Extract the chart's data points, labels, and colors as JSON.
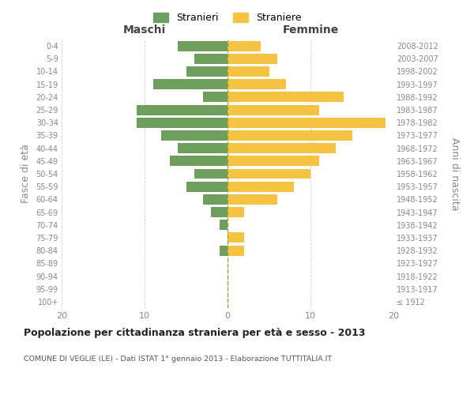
{
  "age_groups": [
    "100+",
    "95-99",
    "90-94",
    "85-89",
    "80-84",
    "75-79",
    "70-74",
    "65-69",
    "60-64",
    "55-59",
    "50-54",
    "45-49",
    "40-44",
    "35-39",
    "30-34",
    "25-29",
    "20-24",
    "15-19",
    "10-14",
    "5-9",
    "0-4"
  ],
  "birth_years": [
    "≤ 1912",
    "1913-1917",
    "1918-1922",
    "1923-1927",
    "1928-1932",
    "1933-1937",
    "1938-1942",
    "1943-1947",
    "1948-1952",
    "1953-1957",
    "1958-1962",
    "1963-1967",
    "1968-1972",
    "1973-1977",
    "1978-1982",
    "1983-1987",
    "1988-1992",
    "1993-1997",
    "1998-2002",
    "2003-2007",
    "2008-2012"
  ],
  "males": [
    0,
    0,
    0,
    0,
    1,
    0,
    1,
    2,
    3,
    5,
    4,
    7,
    6,
    8,
    11,
    11,
    3,
    9,
    5,
    4,
    6
  ],
  "females": [
    0,
    0,
    0,
    0,
    2,
    2,
    0,
    2,
    6,
    8,
    10,
    11,
    13,
    15,
    19,
    11,
    14,
    7,
    5,
    6,
    4
  ],
  "male_color": "#6e9e5c",
  "female_color": "#f5c242",
  "background_color": "#ffffff",
  "grid_color": "#cccccc",
  "title": "Popolazione per cittadinanza straniera per età e sesso - 2013",
  "subtitle": "COMUNE DI VEGLIE (LE) - Dati ISTAT 1° gennaio 2013 - Elaborazione TUTTITALIA.IT",
  "xlabel_left": "Maschi",
  "xlabel_right": "Femmine",
  "ylabel_left": "Fasce di età",
  "ylabel_right": "Anni di nascita",
  "legend_male": "Stranieri",
  "legend_female": "Straniere",
  "xlim": 20,
  "bar_height": 0.8
}
